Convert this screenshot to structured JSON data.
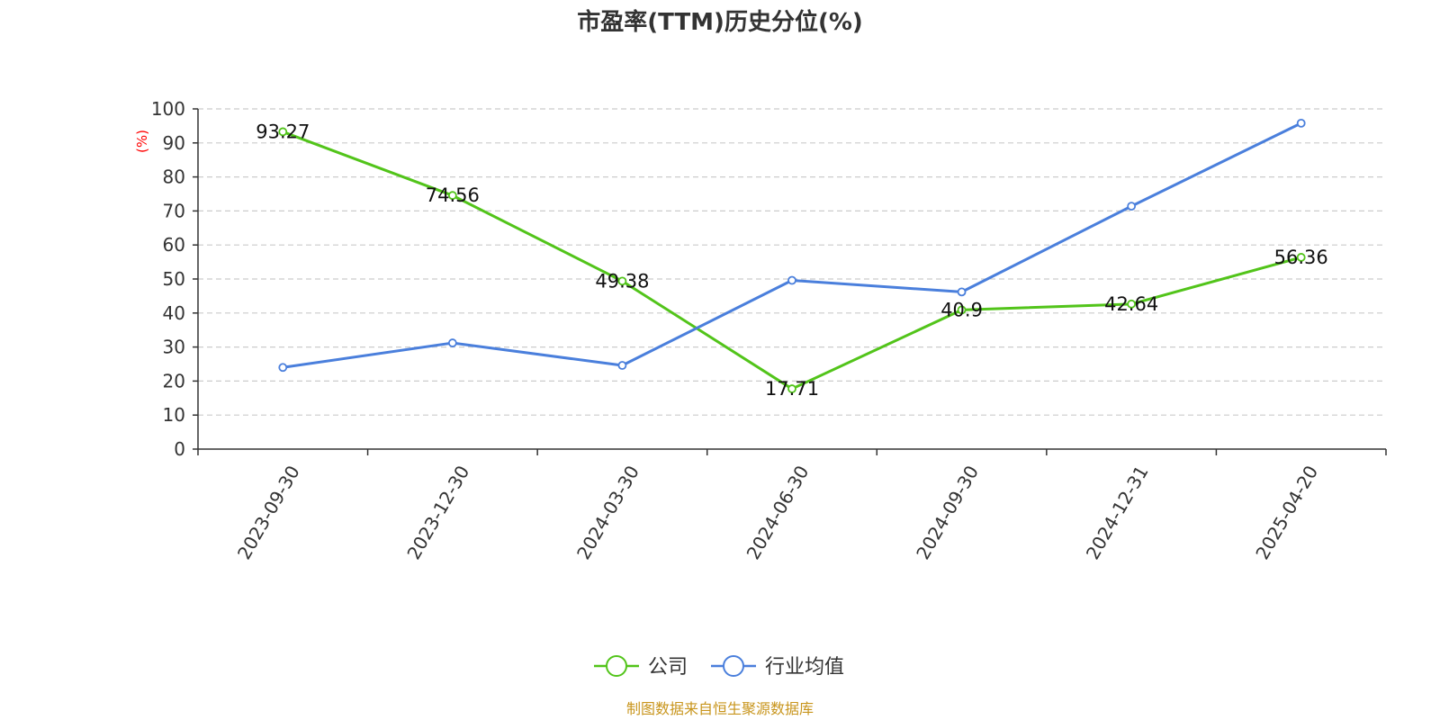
{
  "chart_data": {
    "type": "line",
    "title": "市盈率(TTM)历史分位(%)",
    "ylabel": "(%)",
    "xlabel": "",
    "ylim": [
      0,
      100
    ],
    "yticks": [
      0,
      10,
      20,
      30,
      40,
      50,
      60,
      70,
      80,
      90,
      100
    ],
    "grid": true,
    "legend_position": "bottom-center",
    "categories": [
      "2023-09-30",
      "2023-12-30",
      "2024-03-30",
      "2024-06-30",
      "2024-09-30",
      "2024-12-31",
      "2025-04-20"
    ],
    "series": [
      {
        "name": "公司",
        "color": "#52c41a",
        "values": [
          93.27,
          74.56,
          49.38,
          17.71,
          40.9,
          42.64,
          56.36
        ],
        "labels": [
          "93.27",
          "74.56",
          "49.38",
          "17.71",
          "40.9",
          "42.64",
          "56.36"
        ]
      },
      {
        "name": "行业均值",
        "color": "#4a7fdc",
        "values": [
          24.0,
          31.2,
          24.6,
          49.6,
          46.2,
          71.4,
          95.8
        ]
      }
    ]
  },
  "source": "制图数据来自恒生聚源数据库"
}
